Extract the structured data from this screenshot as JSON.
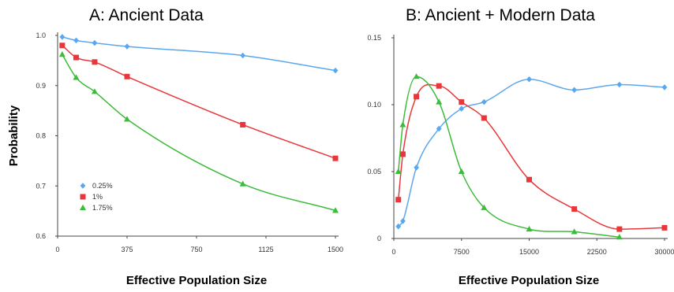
{
  "chart_data": [
    {
      "type": "line",
      "title": "A: Ancient Data",
      "xlabel": "Effective Population Size",
      "ylabel": "Probability",
      "xlim": [
        0,
        1500
      ],
      "ylim": [
        0.6,
        1.0
      ],
      "x_ticks": [
        "0",
        "375",
        "750",
        "1125",
        "1500"
      ],
      "y_ticks": [
        "0.6",
        "0.7",
        "0.8",
        "0.9",
        "1.0"
      ],
      "legend": "bottom-left",
      "series": [
        {
          "name": "0.25%",
          "color": "#5aa7ef",
          "marker": "diamond",
          "x": [
            25,
            100,
            200,
            375,
            1000,
            1500
          ],
          "y": [
            0.997,
            0.99,
            0.985,
            0.978,
            0.96,
            0.93
          ]
        },
        {
          "name": "1%",
          "color": "#e8373b",
          "marker": "square",
          "x": [
            25,
            100,
            200,
            375,
            1000,
            1500
          ],
          "y": [
            0.98,
            0.956,
            0.947,
            0.918,
            0.822,
            0.755
          ]
        },
        {
          "name": "1.75%",
          "color": "#3dbb3a",
          "marker": "triangle",
          "x": [
            25,
            100,
            200,
            375,
            1000,
            1500
          ],
          "y": [
            0.962,
            0.916,
            0.888,
            0.833,
            0.704,
            0.651
          ]
        }
      ]
    },
    {
      "type": "line",
      "title": "B: Ancient + Modern Data",
      "xlabel": "Effective Population Size",
      "ylabel": "",
      "xlim": [
        0,
        30000
      ],
      "ylim": [
        0,
        0.15
      ],
      "x_ticks": [
        "0",
        "7500",
        "15000",
        "22500",
        "30000"
      ],
      "y_ticks": [
        "0",
        "0.05",
        "0.10",
        "0.15"
      ],
      "series": [
        {
          "name": "0.25%",
          "color": "#5aa7ef",
          "marker": "diamond",
          "x": [
            500,
            1000,
            2500,
            5000,
            7500,
            10000,
            15000,
            20000,
            25000,
            30000
          ],
          "y": [
            0.009,
            0.013,
            0.053,
            0.082,
            0.097,
            0.102,
            0.119,
            0.111,
            0.115,
            0.113
          ]
        },
        {
          "name": "1%",
          "color": "#e8373b",
          "marker": "square",
          "x": [
            500,
            1000,
            2500,
            5000,
            7500,
            10000,
            15000,
            20000,
            25000,
            30000
          ],
          "y": [
            0.029,
            0.063,
            0.106,
            0.114,
            0.102,
            0.09,
            0.044,
            0.022,
            0.007,
            0.008
          ]
        },
        {
          "name": "1.75%",
          "color": "#3dbb3a",
          "marker": "triangle",
          "x": [
            500,
            1000,
            2500,
            5000,
            7500,
            10000,
            15000,
            20000,
            25000
          ],
          "y": [
            0.05,
            0.085,
            0.121,
            0.102,
            0.05,
            0.023,
            0.007,
            0.005,
            0.001
          ]
        }
      ]
    }
  ]
}
